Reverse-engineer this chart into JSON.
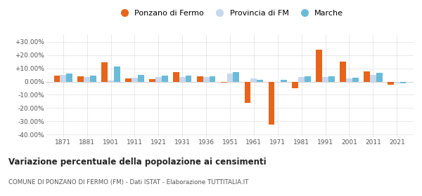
{
  "years": [
    1871,
    1881,
    1901,
    1911,
    1921,
    1931,
    1936,
    1951,
    1961,
    1971,
    1981,
    1991,
    2001,
    2011,
    2021
  ],
  "ponzano": [
    4.5,
    4.0,
    14.5,
    2.5,
    2.0,
    7.0,
    4.0,
    -1.0,
    -16.0,
    -32.5,
    -5.0,
    24.0,
    15.0,
    7.5,
    -2.5
  ],
  "provincia": [
    5.0,
    3.5,
    1.0,
    3.0,
    3.5,
    3.5,
    3.5,
    6.0,
    2.5,
    -0.5,
    3.5,
    3.5,
    2.5,
    5.0,
    -1.5
  ],
  "marche": [
    6.0,
    4.5,
    11.5,
    5.0,
    4.5,
    4.5,
    4.0,
    7.0,
    1.5,
    1.5,
    4.0,
    4.0,
    3.0,
    6.5,
    -1.5
  ],
  "color_ponzano": "#e8641a",
  "color_provincia": "#c5d8f0",
  "color_marche": "#6bbbd8",
  "title": "Variazione percentuale della popolazione ai censimenti",
  "subtitle": "COMUNE DI PONZANO DI FERMO (FM) - Dati ISTAT - Elaborazione TUTTITALIA.IT",
  "legend_labels": [
    "Ponzano di Fermo",
    "Provincia di FM",
    "Marche"
  ],
  "ylim": [
    -42,
    35
  ],
  "yticks": [
    -40,
    -30,
    -20,
    -10,
    0,
    10,
    20,
    30
  ],
  "background_color": "#ffffff"
}
